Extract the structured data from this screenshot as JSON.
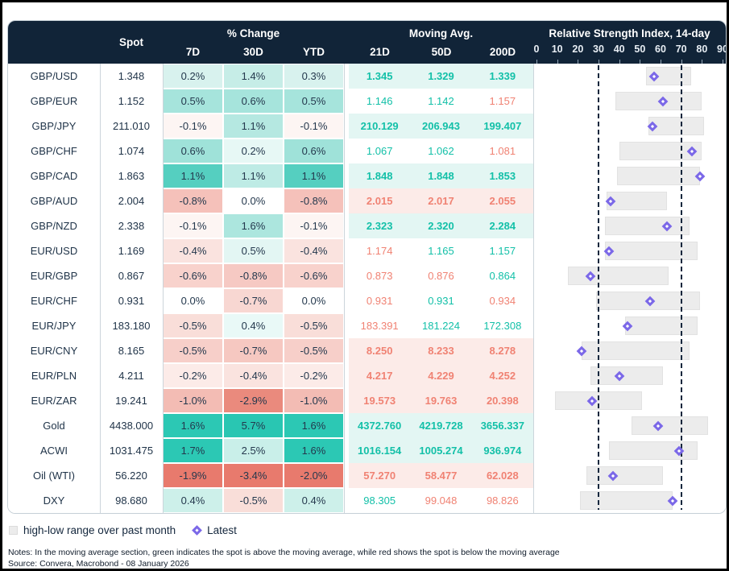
{
  "header": {
    "spot": "Spot",
    "pct_change": "% Change",
    "cols_pct": [
      "7D",
      "30D",
      "YTD"
    ],
    "moving_avg": "Moving Avg.",
    "cols_ma": [
      "21D",
      "50D",
      "200D"
    ],
    "rsi_title": "Relative Strength Index, 14-day"
  },
  "legend": {
    "range_label": "high-low range over past month",
    "latest_label": "Latest"
  },
  "notes": "Notes: In the moving average section, green indicates the spot is above the moving average, while red shows the spot is below the moving average",
  "source": "Source: Convera, Macrobond - 08 January 2026",
  "colors": {
    "header_bg": "#112438",
    "ma_green_text": "#13c0a8",
    "ma_red_text": "#f08273",
    "ma_green_row_bg": "#e3f6f3",
    "ma_red_row_bg": "#fcebe8",
    "diamond": "#7b68e8",
    "range_bar": "#ececec",
    "dashed_reference": "#14273d",
    "text": "#1e3247"
  },
  "chart_data": {
    "type": "table",
    "rsi_axis": {
      "min": 0,
      "max": 90,
      "ticks": [
        0,
        10,
        20,
        30,
        40,
        50,
        60,
        70,
        80,
        90
      ],
      "reference_lines": [
        30,
        70
      ]
    },
    "rows": [
      {
        "label": "GBP/USD",
        "spot": "1.348",
        "pct": [
          "0.2%",
          "1.4%",
          "0.3%"
        ],
        "pct_bg": [
          "#d8f2ee",
          "#c6ede7",
          "#d8f2ee"
        ],
        "ma": [
          "1.345",
          "1.329",
          "1.339"
        ],
        "ma_color": [
          "g",
          "g",
          "g"
        ],
        "ma_highlight": "green",
        "rsi": {
          "low": 53,
          "high": 75,
          "latest": 57
        }
      },
      {
        "label": "GBP/EUR",
        "spot": "1.152",
        "pct": [
          "0.5%",
          "0.6%",
          "0.5%"
        ],
        "pct_bg": [
          "#a6e4dc",
          "#a6e4dc",
          "#a6e4dc"
        ],
        "ma": [
          "1.146",
          "1.142",
          "1.157"
        ],
        "ma_color": [
          "g",
          "g",
          "r"
        ],
        "ma_highlight": "none",
        "rsi": {
          "low": 38,
          "high": 80,
          "latest": 61
        }
      },
      {
        "label": "GBP/JPY",
        "spot": "211.010",
        "pct": [
          "-0.1%",
          "1.1%",
          "-0.1%"
        ],
        "pct_bg": [
          "#fdf5f3",
          "#b5e8e1",
          "#fdf5f3"
        ],
        "ma": [
          "210.129",
          "206.943",
          "199.407"
        ],
        "ma_color": [
          "g",
          "g",
          "g"
        ],
        "ma_highlight": "green",
        "rsi": {
          "low": 54,
          "high": 81,
          "latest": 56
        }
      },
      {
        "label": "GBP/CHF",
        "spot": "1.074",
        "pct": [
          "0.6%",
          "0.2%",
          "0.6%"
        ],
        "pct_bg": [
          "#9fe2d9",
          "#e7f8f5",
          "#9fe2d9"
        ],
        "ma": [
          "1.067",
          "1.062",
          "1.081"
        ],
        "ma_color": [
          "g",
          "g",
          "r"
        ],
        "ma_highlight": "none",
        "rsi": {
          "low": 40,
          "high": 80,
          "latest": 75
        }
      },
      {
        "label": "GBP/CAD",
        "spot": "1.863",
        "pct": [
          "1.1%",
          "1.1%",
          "1.1%"
        ],
        "pct_bg": [
          "#55cfc0",
          "#beebe5",
          "#55cfc0"
        ],
        "ma": [
          "1.848",
          "1.848",
          "1.853"
        ],
        "ma_color": [
          "g",
          "g",
          "g"
        ],
        "ma_highlight": "green",
        "rsi": {
          "low": 39,
          "high": 79,
          "latest": 79
        }
      },
      {
        "label": "GBP/AUD",
        "spot": "2.004",
        "pct": [
          "-0.8%",
          "0.0%",
          "-0.8%"
        ],
        "pct_bg": [
          "#f5c1ba",
          "#ffffff",
          "#f5c1ba"
        ],
        "ma": [
          "2.015",
          "2.017",
          "2.055"
        ],
        "ma_color": [
          "r",
          "r",
          "r"
        ],
        "ma_highlight": "red",
        "rsi": {
          "low": 34,
          "high": 63,
          "latest": 36
        }
      },
      {
        "label": "GBP/NZD",
        "spot": "2.338",
        "pct": [
          "-0.1%",
          "1.6%",
          "-0.1%"
        ],
        "pct_bg": [
          "#fdf5f3",
          "#ace6de",
          "#fdf5f3"
        ],
        "ma": [
          "2.323",
          "2.320",
          "2.284"
        ],
        "ma_color": [
          "g",
          "g",
          "g"
        ],
        "ma_highlight": "green",
        "rsi": {
          "low": 33,
          "high": 74,
          "latest": 63
        }
      },
      {
        "label": "EUR/USD",
        "spot": "1.169",
        "pct": [
          "-0.4%",
          "0.5%",
          "-0.4%"
        ],
        "pct_bg": [
          "#fae3df",
          "#e3f6f3",
          "#fae3df"
        ],
        "ma": [
          "1.174",
          "1.165",
          "1.157"
        ],
        "ma_color": [
          "r",
          "g",
          "g"
        ],
        "ma_highlight": "none",
        "rsi": {
          "low": 33,
          "high": 78,
          "latest": 35
        }
      },
      {
        "label": "EUR/GBP",
        "spot": "0.867",
        "pct": [
          "-0.6%",
          "-0.8%",
          "-0.6%"
        ],
        "pct_bg": [
          "#f8d2cc",
          "#f6c9c3",
          "#f8d2cc"
        ],
        "ma": [
          "0.873",
          "0.876",
          "0.864"
        ],
        "ma_color": [
          "r",
          "r",
          "g"
        ],
        "ma_highlight": "none",
        "rsi": {
          "low": 15,
          "high": 64,
          "latest": 26
        }
      },
      {
        "label": "EUR/CHF",
        "spot": "0.931",
        "pct": [
          "0.0%",
          "-0.7%",
          "0.0%"
        ],
        "pct_bg": [
          "#ffffff",
          "#f8d7d2",
          "#ffffff"
        ],
        "ma": [
          "0.931",
          "0.931",
          "0.934"
        ],
        "ma_color": [
          "r",
          "g",
          "r"
        ],
        "ma_highlight": "none",
        "rsi": {
          "low": 29,
          "high": 79,
          "latest": 55
        }
      },
      {
        "label": "EUR/JPY",
        "spot": "183.180",
        "pct": [
          "-0.5%",
          "0.4%",
          "-0.5%"
        ],
        "pct_bg": [
          "#f9ded9",
          "#e9f9f7",
          "#f9ded9"
        ],
        "ma": [
          "183.391",
          "181.224",
          "172.308"
        ],
        "ma_color": [
          "r",
          "g",
          "g"
        ],
        "ma_highlight": "none",
        "rsi": {
          "low": 43,
          "high": 78,
          "latest": 44
        }
      },
      {
        "label": "EUR/CNY",
        "spot": "8.165",
        "pct": [
          "-0.5%",
          "-0.7%",
          "-0.5%"
        ],
        "pct_bg": [
          "#f7cfc9",
          "#f6c8c1",
          "#f7cfc9"
        ],
        "ma": [
          "8.250",
          "8.233",
          "8.278"
        ],
        "ma_color": [
          "r",
          "r",
          "r"
        ],
        "ma_highlight": "red",
        "rsi": {
          "low": 22,
          "high": 74,
          "latest": 22
        }
      },
      {
        "label": "EUR/PLN",
        "spot": "4.211",
        "pct": [
          "-0.2%",
          "-0.4%",
          "-0.2%"
        ],
        "pct_bg": [
          "#fcebe8",
          "#fae3df",
          "#fcebe8"
        ],
        "ma": [
          "4.217",
          "4.229",
          "4.252"
        ],
        "ma_color": [
          "r",
          "r",
          "r"
        ],
        "ma_highlight": "red",
        "rsi": {
          "low": 26,
          "high": 61,
          "latest": 40
        }
      },
      {
        "label": "EUR/ZAR",
        "spot": "19.241",
        "pct": [
          "-1.0%",
          "-2.9%",
          "-1.0%"
        ],
        "pct_bg": [
          "#f3bcb4",
          "#ea8a7d",
          "#f3bcb4"
        ],
        "ma": [
          "19.573",
          "19.763",
          "20.398"
        ],
        "ma_color": [
          "r",
          "r",
          "r"
        ],
        "ma_highlight": "red",
        "rsi": {
          "low": 9,
          "high": 51,
          "latest": 27
        }
      },
      {
        "label": "Gold",
        "spot": "4438.000",
        "pct": [
          "1.6%",
          "5.7%",
          "1.6%"
        ],
        "pct_bg": [
          "#2cc8b4",
          "#29c6b2",
          "#2cc8b4"
        ],
        "ma": [
          "4372.760",
          "4219.728",
          "3656.337"
        ],
        "ma_color": [
          "g",
          "g",
          "g"
        ],
        "ma_highlight": "green",
        "rsi": {
          "low": 46,
          "high": 83,
          "latest": 59
        }
      },
      {
        "label": "ACWI",
        "spot": "1031.475",
        "pct": [
          "1.7%",
          "2.5%",
          "1.6%"
        ],
        "pct_bg": [
          "#2cc8b4",
          "#c9efe9",
          "#2cc8b4"
        ],
        "ma": [
          "1016.154",
          "1005.274",
          "936.974"
        ],
        "ma_color": [
          "g",
          "g",
          "g"
        ],
        "ma_highlight": "green",
        "rsi": {
          "low": 35,
          "high": 78,
          "latest": 69
        }
      },
      {
        "label": "Oil (WTI)",
        "spot": "56.220",
        "pct": [
          "-1.9%",
          "-3.4%",
          "-2.0%"
        ],
        "pct_bg": [
          "#e87a6d",
          "#e87a6d",
          "#e87a6d"
        ],
        "ma": [
          "57.270",
          "58.477",
          "62.028"
        ],
        "ma_color": [
          "r",
          "r",
          "r"
        ],
        "ma_highlight": "red",
        "rsi": {
          "low": 24,
          "high": 61,
          "latest": 37
        }
      },
      {
        "label": "DXY",
        "spot": "98.680",
        "pct": [
          "0.4%",
          "-0.5%",
          "0.4%"
        ],
        "pct_bg": [
          "#cdf0ea",
          "#f9ded9",
          "#cdf0ea"
        ],
        "ma": [
          "98.305",
          "99.048",
          "98.826"
        ],
        "ma_color": [
          "g",
          "r",
          "r"
        ],
        "ma_highlight": "none",
        "rsi": {
          "low": 21,
          "high": 66,
          "latest": 66
        }
      }
    ]
  }
}
